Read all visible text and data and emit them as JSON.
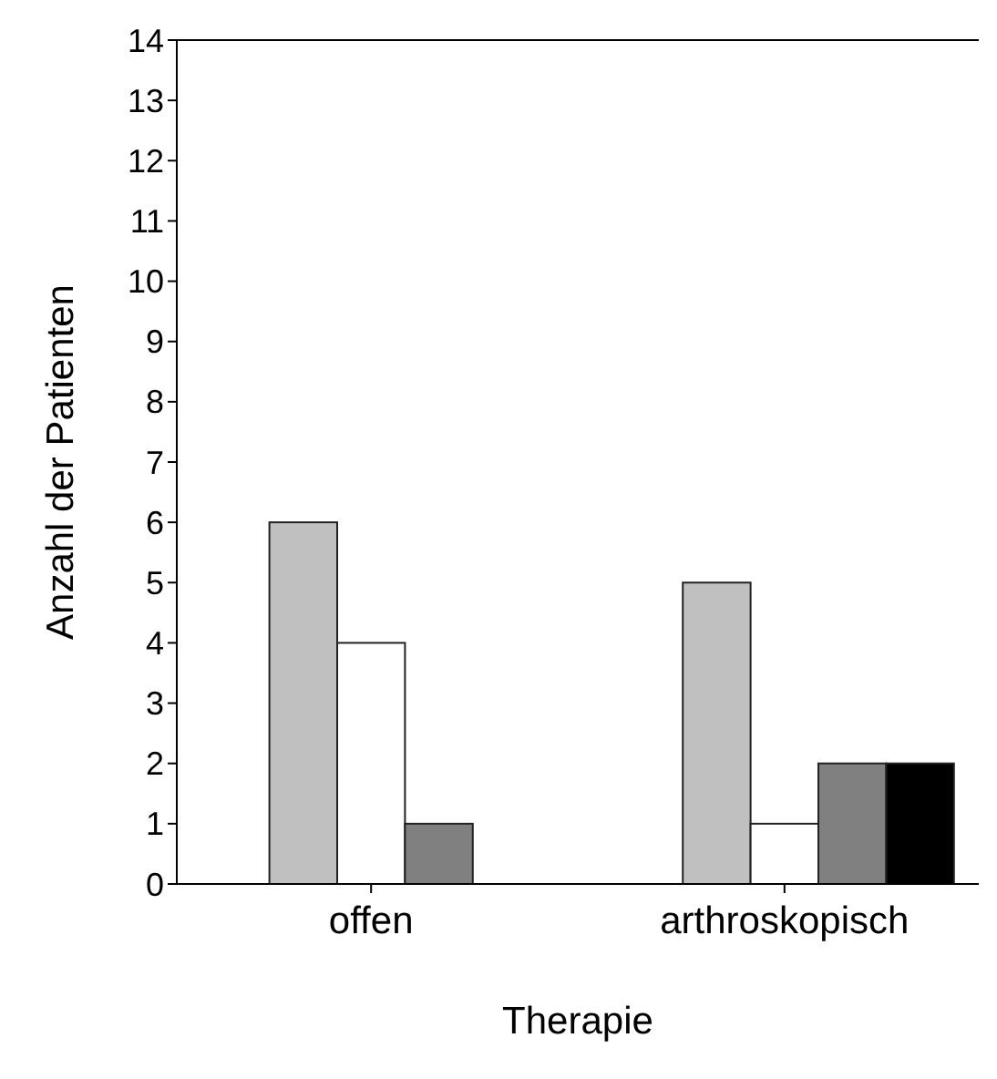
{
  "chart_data": {
    "type": "bar",
    "xlabel": "Therapie",
    "ylabel": "Anzahl der Patienten",
    "categories": [
      "offen",
      "arthroskopisch"
    ],
    "series": [
      {
        "color": "#800000",
        "values": [
          0,
          0
        ]
      },
      {
        "color": "#c0c0c0",
        "values": [
          6,
          5
        ]
      },
      {
        "color": "#ffffff",
        "values": [
          4,
          1
        ]
      },
      {
        "color": "#808080",
        "values": [
          1,
          2
        ]
      },
      {
        "color": "#000000",
        "values": [
          0,
          2
        ]
      }
    ],
    "ylim": [
      0,
      14
    ],
    "yticks": [
      0,
      1,
      2,
      3,
      4,
      5,
      6,
      7,
      8,
      9,
      10,
      11,
      12,
      13,
      14
    ],
    "grid": false
  }
}
